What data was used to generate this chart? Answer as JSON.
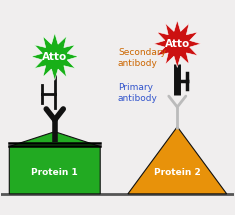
{
  "bg_color": "#f0eeee",
  "protein1_color": "#22aa22",
  "protein2_color": "#e8920a",
  "atto_green_color": "#18b018",
  "atto_red_color": "#cc1111",
  "antibody_dark": "#111111",
  "antibody_light": "#bbbbbb",
  "label1": "Protein 1",
  "label2": "Protein 2",
  "atto_label": "Atto",
  "sec_label": "Secondary\nantibody",
  "pri_label": "Primary\nantibody",
  "text_color_sec": "#cc6600",
  "text_color_pri": "#3355cc",
  "ground_color": "#555555"
}
